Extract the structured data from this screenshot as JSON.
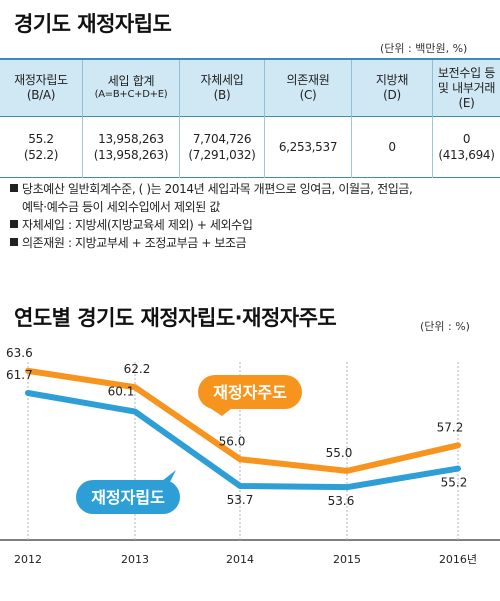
{
  "section1": {
    "title": "경기도 재정자립도",
    "unit": "(단위 : 백만원, %)"
  },
  "table": {
    "headers": [
      {
        "line1": "재정자립도",
        "line2": "(B/A)"
      },
      {
        "line1": "세입 합계",
        "line2": "(A=B+C+D+E)"
      },
      {
        "line1": "자체세입",
        "line2": "(B)"
      },
      {
        "line1": "의존재원",
        "line2": "(C)"
      },
      {
        "line1": "지방채",
        "line2": "(D)"
      },
      {
        "line1": "보전수입 등",
        "line2": "및 내부거래",
        "line3": "(E)"
      }
    ],
    "row": [
      {
        "line1": "55.2",
        "line2": "(52.2)"
      },
      {
        "line1": "13,958,263",
        "line2": "(13,958,263)"
      },
      {
        "line1": "7,704,726",
        "line2": "(7,291,032)"
      },
      {
        "line1": "6,253,537",
        "line2": ""
      },
      {
        "line1": "0",
        "line2": ""
      },
      {
        "line1": "0",
        "line2": "(413,694)"
      }
    ]
  },
  "notes": [
    {
      "line1": "당초예산 일반회계수준, ( )는 2014년 세입과목 개편으로 잉여금, 이월금, 전입금,",
      "line2": "예탁·예수금 등이 세외수입에서 제외된 값"
    },
    {
      "line1": "자체세입 : 지방세(지방교육세 제외) + 세외수입",
      "line2": ""
    },
    {
      "line1": "의존재원 : 지방교부세 + 조정교부금 + 보조금",
      "line2": ""
    }
  ],
  "section2": {
    "title": "연도별 경기도 재정자립도·재정자주도",
    "unit": "(단위 : %)"
  },
  "chart_data": {
    "type": "line",
    "title": "연도별 경기도 재정자립도·재정자주도",
    "unit": "(단위 : %)",
    "x": [
      "2012",
      "2013",
      "2014",
      "2015",
      "2016년"
    ],
    "ylim": [
      50,
      66
    ],
    "grid": false,
    "legend": "inline-labels",
    "series": [
      {
        "name": "재정자주도",
        "color": "#f7941d",
        "values": [
          63.6,
          62.2,
          56.0,
          55.0,
          57.2
        ]
      },
      {
        "name": "재정자립도",
        "color": "#2e9fd6",
        "values": [
          61.7,
          60.1,
          53.7,
          53.6,
          55.2
        ]
      }
    ]
  }
}
